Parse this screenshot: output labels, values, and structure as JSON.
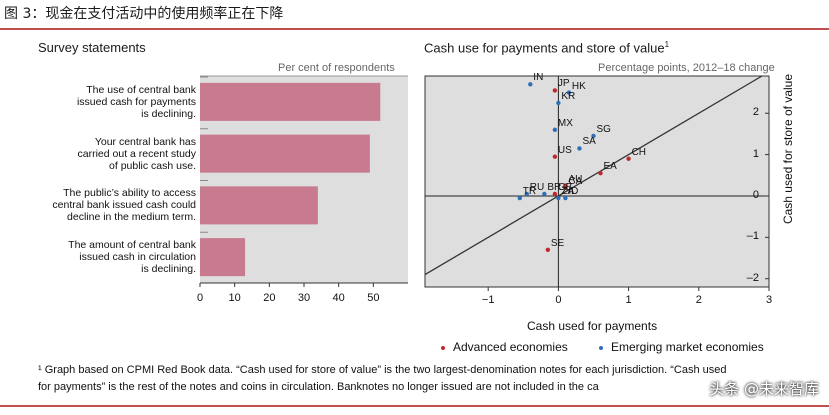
{
  "figure_title": "图 3：现金在支付活动中的使用频率正在下降",
  "left_panel": {
    "title": "Survey statements",
    "subtitle": "Per cent of respondents"
  },
  "right_panel": {
    "title": "Cash use for payments and store of value",
    "title_sup": "1",
    "subtitle": "Percentage points, 2012–18 change",
    "xlabel": "Cash used for payments",
    "ylabel": "Cash used for store of value"
  },
  "legend": {
    "advanced": "Advanced economies",
    "emerging": "Emerging market economies"
  },
  "colors": {
    "bar": "#c87a8f",
    "advanced": "#c0282d",
    "emerging": "#2f6fb7",
    "accent_rule": "#c0504d",
    "plot_bg": "#dedede"
  },
  "footnote": {
    "line1": "¹  Graph based on CPMI Red Book data. “Cash used for store of value” is the two largest-denomination notes for each jurisdiction. “Cash used",
    "line2": "for payments” is the rest of the notes and coins in circulation. Banknotes no longer issued are not included in the ca"
  },
  "watermark": "头条 @未来智库",
  "chart_data": [
    {
      "type": "bar",
      "orientation": "horizontal",
      "title": "Survey statements",
      "subtitle": "Per cent of respondents",
      "categories": [
        "The use of central bank issued cash for payments is declining.",
        "Your central bank has carried out a recent study of public cash use.",
        "The public’s ability to access central bank issued cash could decline in the medium term.",
        "The amount of central bank issued cash in circulation is declining."
      ],
      "category_lines": [
        [
          "The use of central bank",
          "issued cash for payments",
          "is declining."
        ],
        [
          "Your central bank has",
          "carried out a recent study",
          "of public cash use."
        ],
        [
          "The public’s ability to access",
          "central bank issued cash could",
          "decline in the medium term."
        ],
        [
          "The amount of central bank",
          "issued cash in circulation",
          "is declining."
        ]
      ],
      "values": [
        52,
        49,
        34,
        13
      ],
      "xlim": [
        0,
        60
      ],
      "xticks": [
        0,
        10,
        20,
        30,
        40,
        50
      ],
      "grid": false
    },
    {
      "type": "scatter",
      "title": "Cash use for payments and store of value",
      "subtitle": "Percentage points, 2012–18 change",
      "xlabel": "Cash used for payments",
      "ylabel": "Cash used for store of value",
      "xlim": [
        -1.9,
        3
      ],
      "ylim": [
        -2.2,
        2.9
      ],
      "xticks": [
        -1,
        0,
        1,
        2,
        3
      ],
      "xtick_labels": [
        "−1",
        "0",
        "1",
        "2",
        "3"
      ],
      "yticks": [
        -2,
        -1,
        0,
        1,
        2
      ],
      "ytick_labels": [
        "–2",
        "–1",
        "0",
        "1",
        "2"
      ],
      "reference_line": "45-degree",
      "series": [
        {
          "name": "Advanced economies",
          "color": "#c0282d",
          "points": [
            {
              "label": "JP",
              "x": -0.05,
              "y": 2.55
            },
            {
              "label": "US",
              "x": -0.05,
              "y": 0.95
            },
            {
              "label": "CH",
              "x": 1.0,
              "y": 0.9
            },
            {
              "label": "EA",
              "x": 0.6,
              "y": 0.55
            },
            {
              "label": "AU",
              "x": 0.1,
              "y": 0.25
            },
            {
              "label": "CA",
              "x": 0.1,
              "y": 0.2
            },
            {
              "label": "GB",
              "x": -0.05,
              "y": 0.05
            },
            {
              "label": "SE",
              "x": -0.15,
              "y": -1.3
            }
          ]
        },
        {
          "name": "Emerging market economies",
          "color": "#2f6fb7",
          "points": [
            {
              "label": "IN",
              "x": -0.4,
              "y": 2.7
            },
            {
              "label": "HK",
              "x": 0.15,
              "y": 2.5
            },
            {
              "label": "KR",
              "x": 0.0,
              "y": 2.25
            },
            {
              "label": "MX",
              "x": -0.05,
              "y": 1.6
            },
            {
              "label": "SG",
              "x": 0.5,
              "y": 1.45
            },
            {
              "label": "SA",
              "x": 0.3,
              "y": 1.15
            },
            {
              "label": "TR",
              "x": -0.55,
              "y": -0.05
            },
            {
              "label": "RU",
              "x": -0.45,
              "y": 0.05
            },
            {
              "label": "BR",
              "x": -0.2,
              "y": 0.05
            },
            {
              "label": "ID",
              "x": 0.1,
              "y": -0.05
            },
            {
              "label": "ZA",
              "x": 0.0,
              "y": -0.05
            }
          ]
        }
      ]
    }
  ]
}
